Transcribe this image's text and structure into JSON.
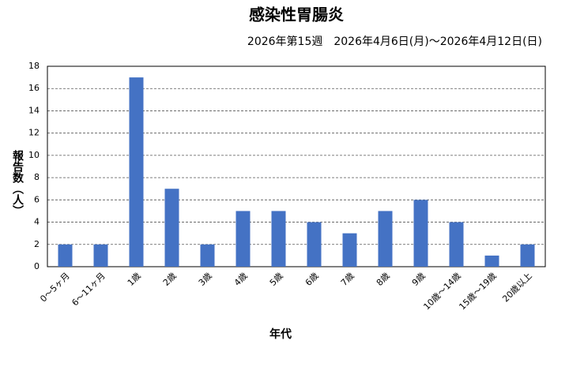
{
  "chart_data": {
    "type": "bar",
    "title": "感染性胃腸炎",
    "subtitle": "2026年第15週　2026年4月6日(月)～2026年4月12日(日)",
    "y_label": "報告数（人）",
    "x_label": "年代",
    "categories": [
      "0～5ヶ月",
      "6～11ヶ月",
      "1歳",
      "2歳",
      "3歳",
      "4歳",
      "5歳",
      "6歳",
      "7歳",
      "8歳",
      "9歳",
      "10歳～14歳",
      "15歳～19歳",
      "20歳以上"
    ],
    "values": [
      2,
      2,
      17,
      7,
      2,
      5,
      5,
      4,
      3,
      5,
      6,
      4,
      1,
      2
    ],
    "color": "#4472c4",
    "ylim": [
      0,
      18
    ],
    "yticks": [
      0,
      2,
      4,
      6,
      8,
      10,
      12,
      14,
      16,
      18
    ],
    "grid": true
  }
}
